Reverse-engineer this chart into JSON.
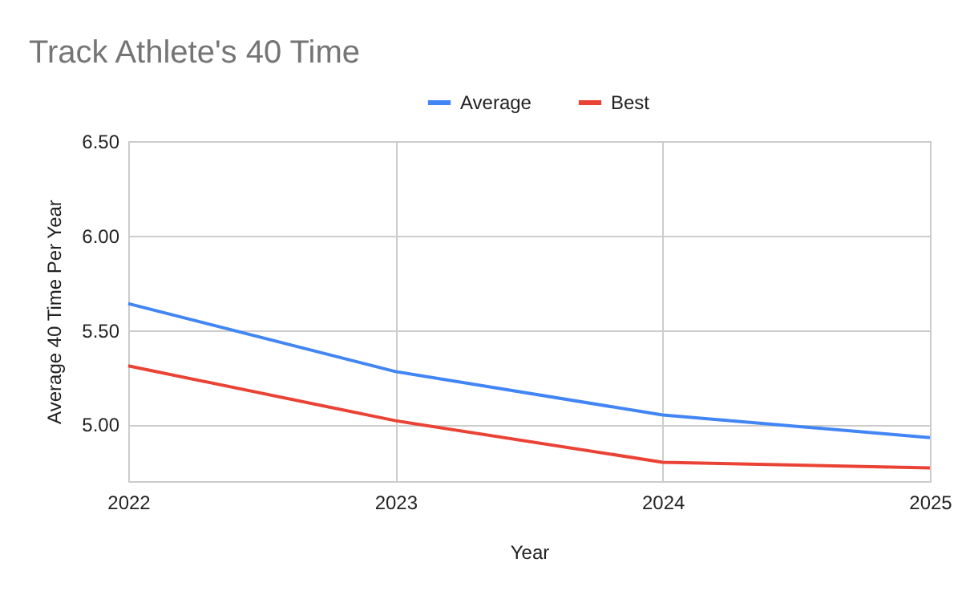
{
  "chart_data": {
    "type": "line",
    "title": "Track Athlete's 40 Time",
    "xlabel": "Year",
    "ylabel": "Average 40 Time Per Year",
    "categories": [
      "2022",
      "2023",
      "2024",
      "2025"
    ],
    "series": [
      {
        "name": "Average",
        "color": "#4285f4",
        "values": [
          5.64,
          5.28,
          5.05,
          4.93
        ]
      },
      {
        "name": "Best",
        "color": "#ea4335",
        "values": [
          5.31,
          5.02,
          4.8,
          4.77
        ]
      }
    ],
    "ylim": [
      4.7,
      6.5
    ],
    "yticks": [
      {
        "value": 5,
        "label": "5.00"
      },
      {
        "value": 5.5,
        "label": "5.50"
      },
      {
        "value": 6,
        "label": "6.00"
      },
      {
        "value": 6.5,
        "label": "6.50"
      }
    ],
    "grid": true,
    "legend": "top"
  }
}
